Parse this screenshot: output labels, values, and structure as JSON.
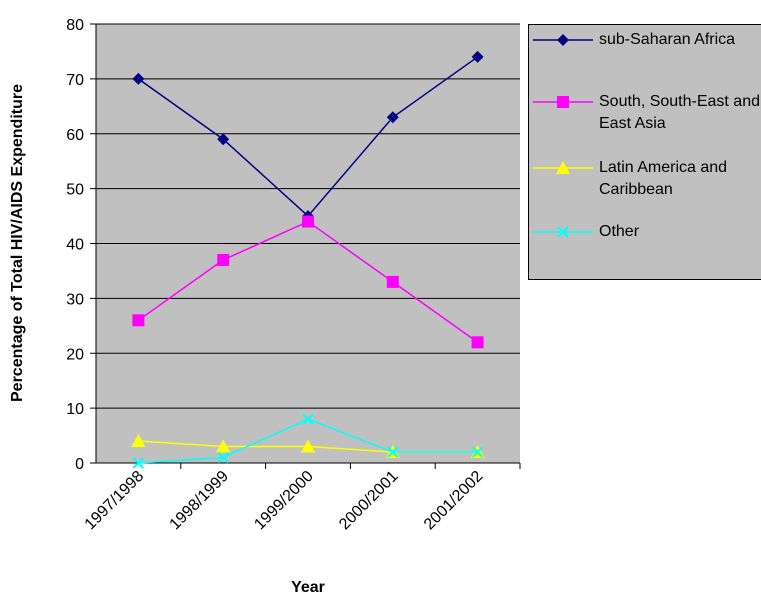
{
  "chart_data": {
    "type": "line",
    "y_label": "Percentage of Total HIV/AIDS Expenditure",
    "x_label": "Year",
    "categories": [
      "1997/1998",
      "1998/1999",
      "1999/2000",
      "2000/2001",
      "2001/2002"
    ],
    "series": [
      {
        "name": "sub-Saharan Africa",
        "color": "#000080",
        "marker": "diamond",
        "values": [
          70,
          59,
          45,
          63,
          74
        ]
      },
      {
        "name": "South, South-East and East Asia",
        "color": "#ff00ff",
        "marker": "square",
        "values": [
          26,
          37,
          44,
          33,
          22
        ]
      },
      {
        "name": "Latin America and Caribbean",
        "color": "#ffff00",
        "marker": "triangle",
        "values": [
          4,
          3,
          3,
          2,
          2
        ]
      },
      {
        "name": "Other",
        "color": "#00ffff",
        "marker": "x",
        "values": [
          0,
          1,
          8,
          2,
          2
        ]
      }
    ],
    "ylim": [
      0,
      80
    ],
    "yticks": [
      0,
      10,
      20,
      30,
      40,
      50,
      60,
      70,
      80
    ],
    "grid": true
  }
}
